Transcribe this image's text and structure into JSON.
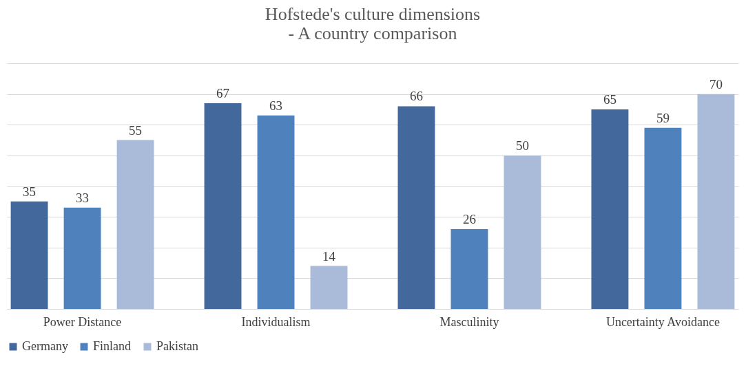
{
  "chart_data": {
    "type": "bar",
    "title": "Hofstede's culture dimensions",
    "subtitle": "- A country comparison",
    "categories": [
      "Power Distance",
      "Individualism",
      "Masculinity",
      "Uncertainty Avoidance"
    ],
    "series": [
      {
        "name": "Germany",
        "color": "#43699c",
        "values": [
          35,
          67,
          66,
          65
        ]
      },
      {
        "name": "Finland",
        "color": "#4f81bd",
        "values": [
          33,
          63,
          26,
          59
        ]
      },
      {
        "name": "Pakistan",
        "color": "#aabad9",
        "values": [
          55,
          14,
          50,
          70
        ]
      }
    ],
    "ylim": [
      0,
      80
    ],
    "yticks": [
      {
        "value": 0,
        "label": null
      },
      {
        "value": 10,
        "label": null
      },
      {
        "value": 20,
        "label": null
      },
      {
        "value": 30,
        "label": null
      },
      {
        "value": 40,
        "label": null
      },
      {
        "value": 50,
        "label": null
      },
      {
        "value": 60,
        "label": null
      },
      {
        "value": 70,
        "label": null
      },
      {
        "value": 80,
        "label": null
      }
    ],
    "grid": "y",
    "legend": "bottom",
    "tick_labels": "x",
    "data_labels": true
  }
}
